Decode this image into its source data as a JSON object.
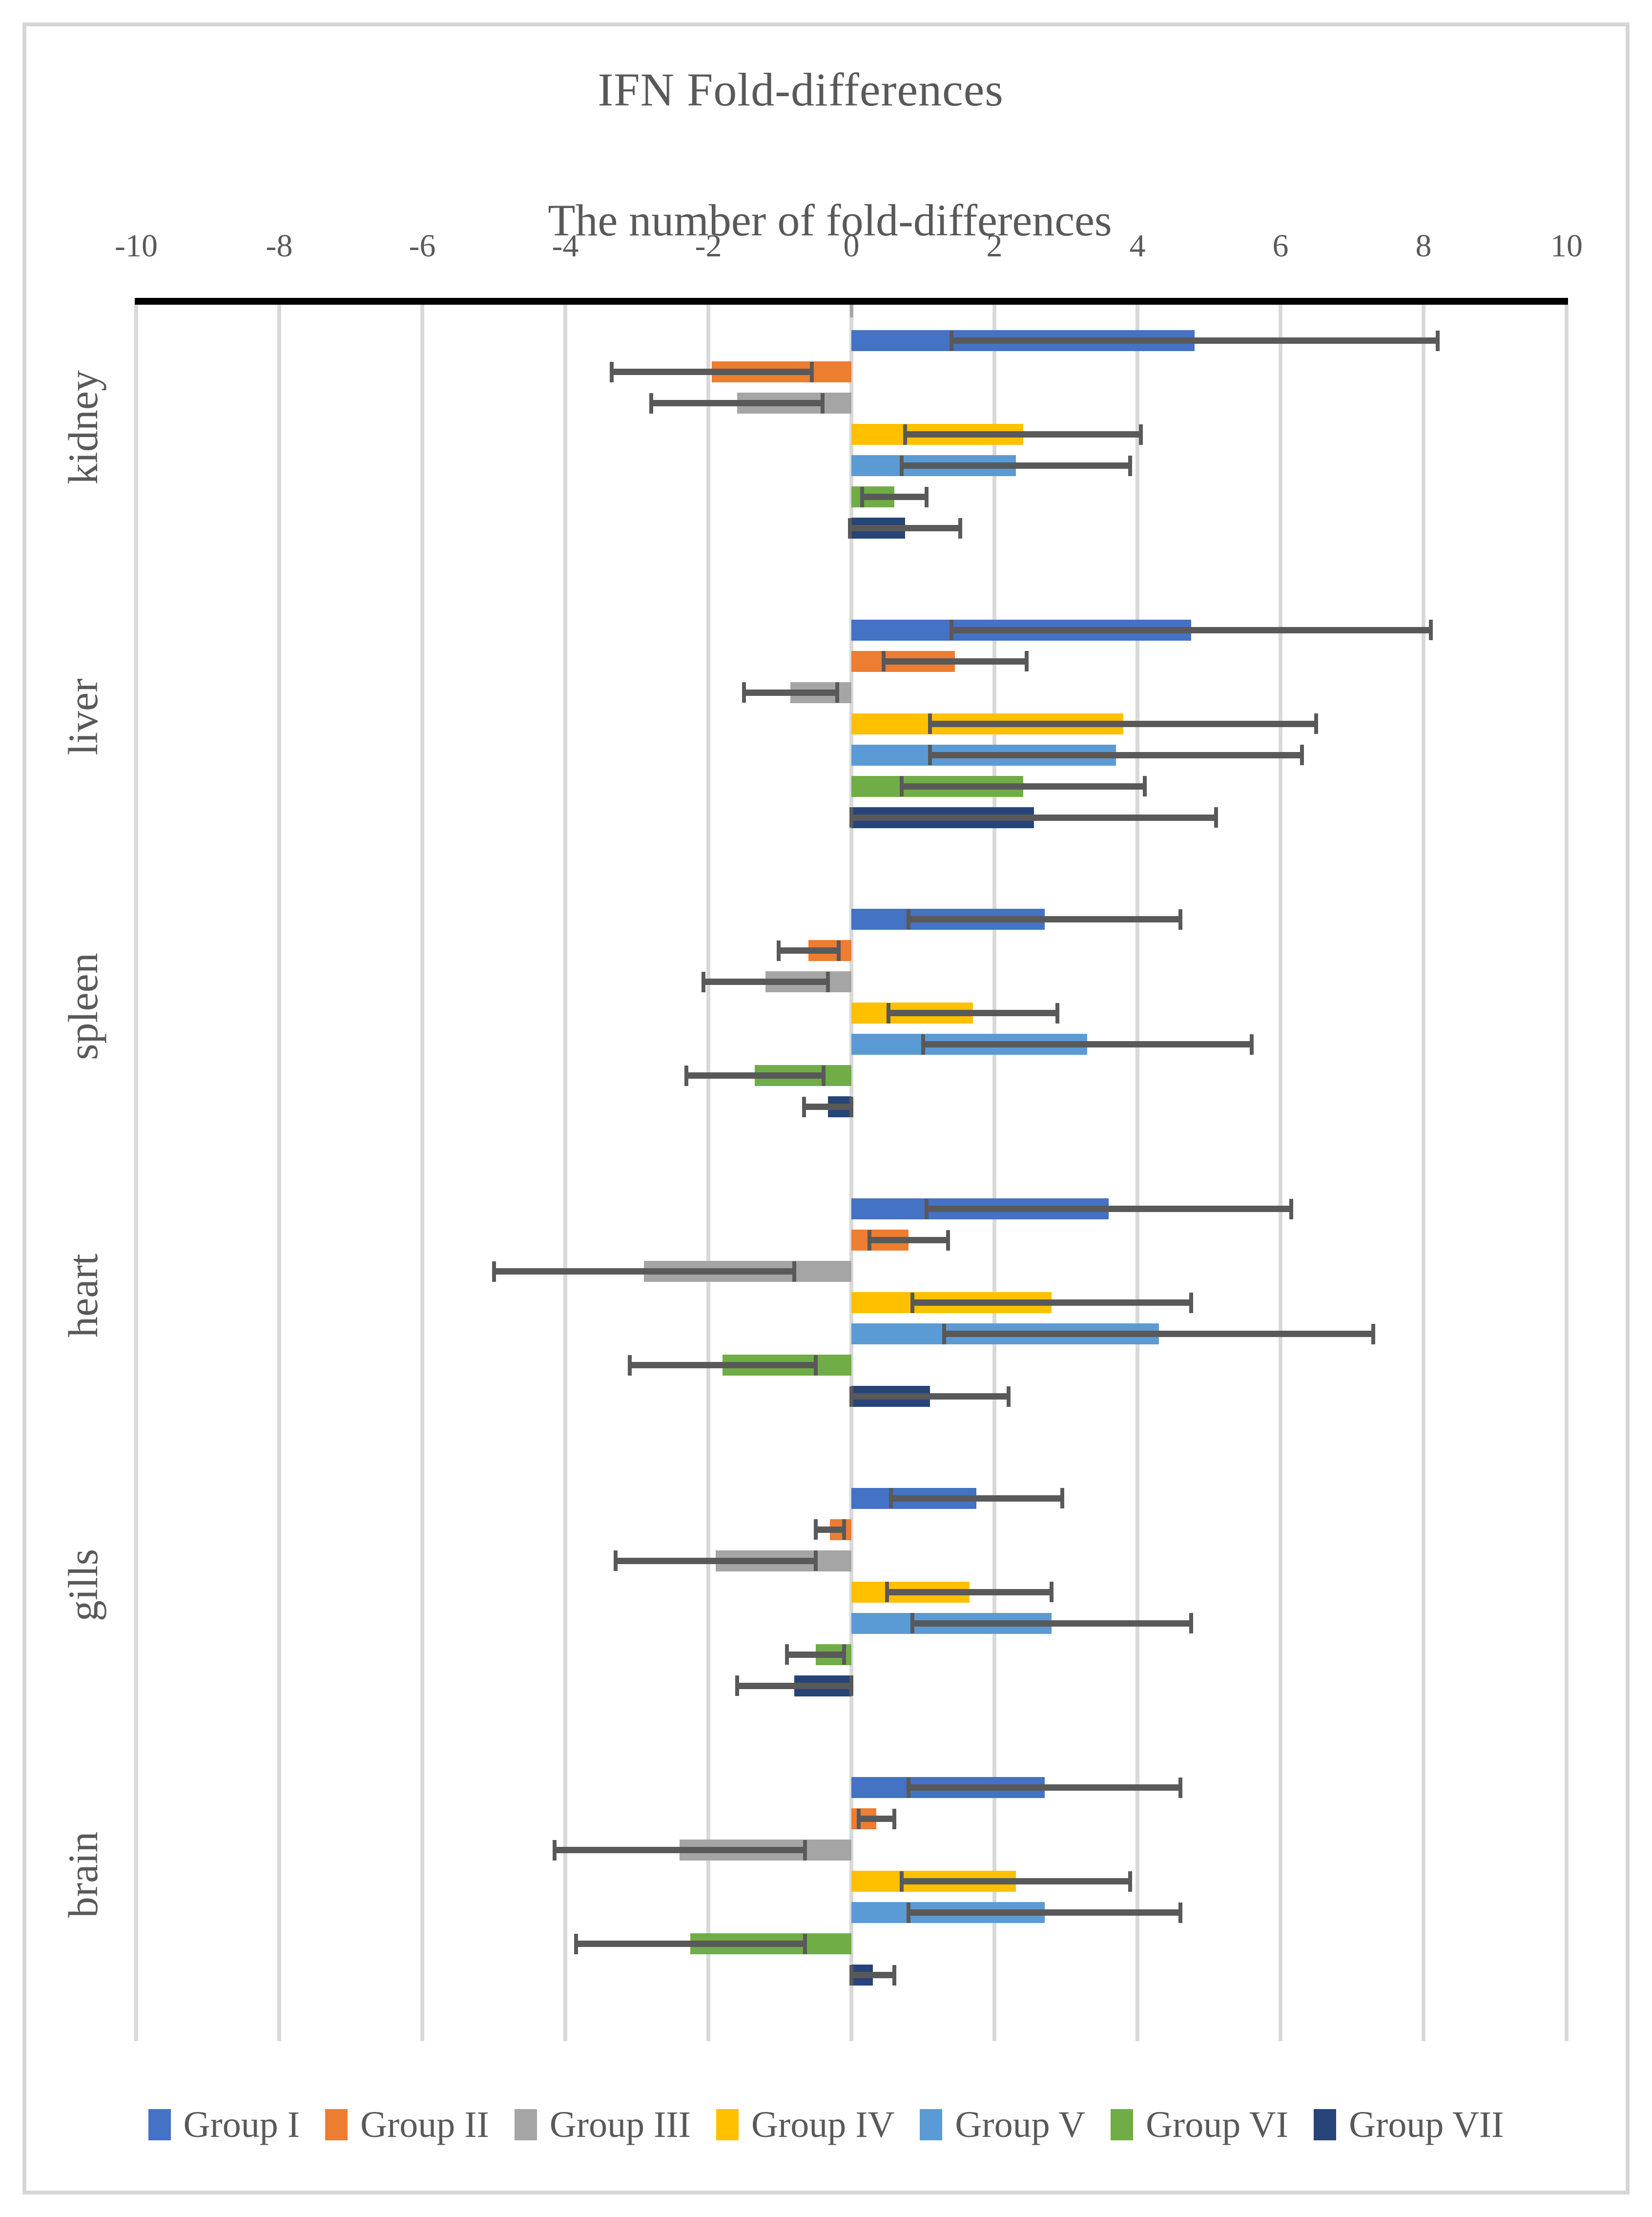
{
  "chart_data": {
    "type": "bar",
    "orientation": "horizontal",
    "title": "IFN Fold-differences",
    "xlabel": "The number of fold-differences",
    "ylabel": "",
    "xlim": [
      -10,
      10
    ],
    "x_ticks": [
      -10,
      -8,
      -6,
      -4,
      -2,
      0,
      2,
      4,
      6,
      8,
      10
    ],
    "x_tick_labels": [
      "-10",
      "-8",
      "-6",
      "-4",
      "-2",
      "0",
      "2",
      "4",
      "6",
      "8",
      "10"
    ],
    "grid": "vertical",
    "legend_position": "bottom",
    "error_bars": true,
    "categories": [
      "kidney",
      "liver",
      "spleen",
      "heart",
      "gills",
      "brain"
    ],
    "series": [
      {
        "name": "Group I",
        "color": "#4472C4",
        "values": [
          4.8,
          4.75,
          2.7,
          3.6,
          1.75,
          2.7
        ],
        "errors": [
          3.4,
          3.35,
          1.9,
          2.55,
          1.2,
          1.9
        ]
      },
      {
        "name": "Group II",
        "color": "#ED7D31",
        "values": [
          -1.95,
          1.45,
          -0.6,
          0.8,
          -0.3,
          0.35
        ],
        "errors": [
          1.4,
          1.0,
          0.42,
          0.55,
          0.2,
          0.25
        ]
      },
      {
        "name": "Group III",
        "color": "#A5A5A5",
        "values": [
          -1.6,
          -0.85,
          -1.2,
          -2.9,
          -1.9,
          -2.4
        ],
        "errors": [
          1.2,
          0.65,
          0.87,
          2.1,
          1.4,
          1.75
        ]
      },
      {
        "name": "Group IV",
        "color": "#FFC000",
        "values": [
          2.4,
          3.8,
          1.7,
          2.8,
          1.65,
          2.3
        ],
        "errors": [
          1.65,
          2.7,
          1.18,
          1.95,
          1.15,
          1.6
        ]
      },
      {
        "name": "Group V",
        "color": "#5B9BD5",
        "values": [
          2.3,
          3.7,
          3.3,
          4.3,
          2.8,
          2.7
        ],
        "errors": [
          1.6,
          2.6,
          2.3,
          3.0,
          1.95,
          1.9
        ]
      },
      {
        "name": "Group VI",
        "color": "#70AD47",
        "values": [
          0.6,
          2.4,
          -1.35,
          -1.8,
          -0.5,
          -2.25
        ],
        "errors": [
          0.45,
          1.7,
          0.96,
          1.3,
          0.4,
          1.6
        ]
      },
      {
        "name": "Group VII",
        "color": "#264478",
        "values": [
          0.75,
          2.55,
          -0.33,
          1.1,
          -0.8,
          0.3
        ],
        "errors": [
          0.77,
          2.55,
          0.33,
          1.1,
          0.8,
          0.3
        ]
      }
    ]
  },
  "legend": {
    "items": [
      {
        "label": "Group I",
        "color": "#4472C4"
      },
      {
        "label": "Group II",
        "color": "#ED7D31"
      },
      {
        "label": "Group III",
        "color": "#A5A5A5"
      },
      {
        "label": "Group IV",
        "color": "#FFC000"
      },
      {
        "label": "Group V",
        "color": "#5B9BD5"
      },
      {
        "label": "Group VI",
        "color": "#70AD47"
      },
      {
        "label": "Group VII",
        "color": "#264478"
      }
    ]
  },
  "colors": {
    "error_bar": "#595959",
    "gridline": "#D9D9D9",
    "axis_line": "#000000",
    "text": "#595959",
    "frame_border": "#D6D6D6",
    "background": "#FFFFFF"
  }
}
